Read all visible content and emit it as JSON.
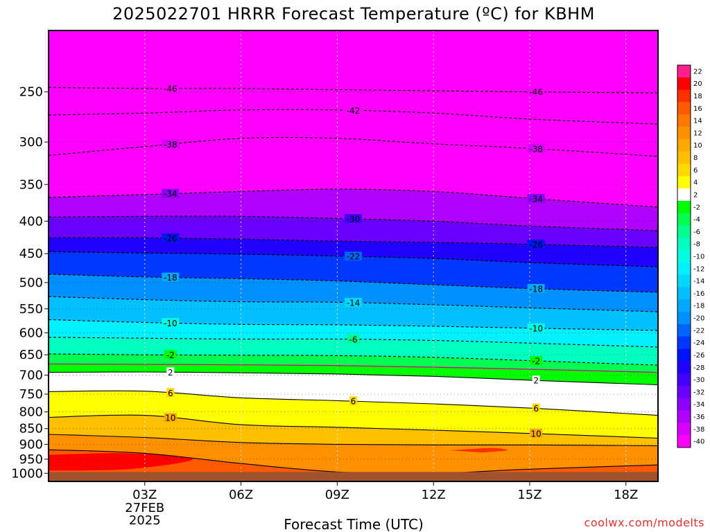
{
  "chart_data": {
    "type": "heatmap",
    "title": "2025022701 HRRR Forecast Temperature (ºC) for KBHM",
    "xlabel": "Forecast Time (UTC)",
    "ylabel": "",
    "credit": "coolwx.com/modelts",
    "y_axis": {
      "scale": "log-pressure",
      "inverted": true,
      "ylim": [
        1030,
        200
      ],
      "ticks": [
        250,
        300,
        350,
        400,
        450,
        500,
        550,
        600,
        650,
        700,
        750,
        800,
        850,
        900,
        950,
        1000
      ]
    },
    "x_axis": {
      "xlim": [
        "2025-02-27 00Z",
        "2025-02-27 19Z"
      ],
      "ticks": [
        {
          "hour": 3,
          "label": "03Z",
          "date_label": "27FEB",
          "year_label": "2025"
        },
        {
          "hour": 6,
          "label": "06Z"
        },
        {
          "hour": 9,
          "label": "09Z"
        },
        {
          "hour": 12,
          "label": "12Z"
        },
        {
          "hour": 15,
          "label": "15Z"
        },
        {
          "hour": 18,
          "label": "18Z"
        }
      ]
    },
    "grid": true,
    "colorbar": {
      "placement": "right",
      "levels": [
        22,
        20,
        18,
        16,
        14,
        12,
        10,
        8,
        6,
        4,
        2,
        -2,
        -4,
        -6,
        -8,
        -10,
        -12,
        -14,
        -16,
        -18,
        -20,
        -22,
        -24,
        -26,
        -28,
        -30,
        -32,
        -34,
        -36,
        -38,
        -40
      ],
      "colors": [
        "#ff1e8c",
        "#ff0000",
        "#ff3000",
        "#ff5a00",
        "#ff7800",
        "#ff9000",
        "#ffa800",
        "#ffc000",
        "#ffd800",
        "#ffff00",
        "#ffffff",
        "#00ff00",
        "#00ff50",
        "#00ff8c",
        "#00ffc0",
        "#00ffe0",
        "#00f0ff",
        "#00d8ff",
        "#00c0ff",
        "#00a8ff",
        "#0090ff",
        "#0064ff",
        "#0038ff",
        "#0014ff",
        "#2000ff",
        "#4400ff",
        "#6a00ff",
        "#8c00ff",
        "#b000ff",
        "#d800ff",
        "#ff00ff"
      ]
    },
    "ground_color": "#a0522d",
    "isotherms": [
      {
        "value": -46,
        "p": [
          246,
          247,
          247,
          248,
          249,
          250,
          251
        ],
        "dashed": true,
        "labels": [
          "-46",
          "-46"
        ]
      },
      {
        "value": -42,
        "p": [
          272,
          270,
          267,
          267,
          270,
          276,
          281
        ],
        "dashed": true,
        "labels": [
          "-42"
        ]
      },
      {
        "value": -38,
        "p": [
          315,
          305,
          296,
          296,
          302,
          307,
          316
        ],
        "dashed": true,
        "labels": [
          "-38",
          "-38"
        ]
      },
      {
        "value": -34,
        "p": [
          367,
          363,
          359,
          356,
          359,
          368,
          380
        ],
        "dashed": true,
        "labels": [
          "-34",
          "-34"
        ]
      },
      {
        "value": -30,
        "p": [
          394,
          393,
          393,
          396,
          400,
          407,
          414
        ],
        "dashed": true,
        "labels": [
          "-30"
        ]
      },
      {
        "value": -26,
        "p": [
          425,
          425,
          427,
          430,
          432,
          435,
          440
        ],
        "dashed": true,
        "labels": [
          "-26",
          "-26"
        ]
      },
      {
        "value": -22,
        "p": [
          447,
          449,
          451,
          454,
          458,
          465,
          472
        ],
        "dashed": true,
        "labels": [
          "-22"
        ]
      },
      {
        "value": -18,
        "p": [
          485,
          490,
          493,
          497,
          504,
          511,
          518
        ],
        "dashed": true,
        "labels": [
          "-18",
          "-18"
        ]
      },
      {
        "value": -14,
        "p": [
          526,
          532,
          536,
          537,
          542,
          548,
          556
        ],
        "dashed": true,
        "labels": [
          "-14"
        ]
      },
      {
        "value": -10,
        "p": [
          572,
          578,
          582,
          583,
          586,
          590,
          595
        ],
        "dashed": true,
        "labels": [
          "-10",
          "-10"
        ]
      },
      {
        "value": -6,
        "p": [
          610,
          612,
          614,
          614,
          617,
          623,
          632
        ],
        "dashed": true,
        "labels": [
          "-6"
        ]
      },
      {
        "value": -2,
        "p": [
          648,
          650,
          651,
          652,
          656,
          664,
          675
        ],
        "dashed": true,
        "labels": [
          "-2",
          "-2"
        ]
      },
      {
        "value": 0,
        "p": [
          672,
          673,
          674,
          676,
          680,
          685,
          693
        ],
        "dashed": false,
        "labels": []
      },
      {
        "value": 2,
        "p": [
          693,
          692,
          694,
          697,
          703,
          713,
          725
        ],
        "dashed": false,
        "labels": [
          "2",
          "2"
        ]
      },
      {
        "value": 6,
        "p": [
          743,
          742,
          760,
          768,
          777,
          789,
          810
        ],
        "dashed": false,
        "labels": [
          "6",
          "6",
          "6"
        ]
      },
      {
        "value": 10,
        "p": [
          816,
          810,
          838,
          846,
          855,
          865,
          880
        ],
        "dashed": false,
        "labels": [
          "10",
          "10"
        ]
      },
      {
        "value": 14,
        "p": [
          868,
          878,
          894,
          900,
          902,
          902,
          905
        ],
        "dashed": false,
        "labels": []
      },
      {
        "value": 18,
        "p": [
          918,
          930,
          965,
          995,
          1000,
          985,
          970
        ],
        "dashed": false,
        "labels": []
      }
    ]
  }
}
